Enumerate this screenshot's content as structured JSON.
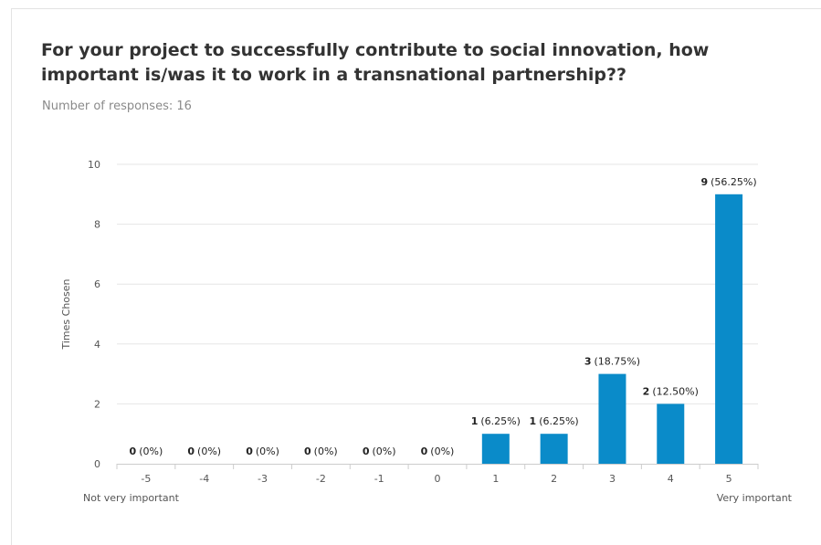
{
  "header": {
    "title": "For your project to successfully contribute to social innovation, how important is/was it to work in a transnational partnership??",
    "responses": "Number of responses: 16"
  },
  "colors": {
    "bar": "#0a8bc9",
    "grid": "#e6e6e6",
    "axis": "#cccccc"
  },
  "chart_data": {
    "type": "bar",
    "title": "For your project to successfully contribute to social innovation, how important is/was it to work in a transnational partnership??",
    "ylabel": "Times Chosen",
    "xlabel": "",
    "categories": [
      "-5",
      "-4",
      "-3",
      "-2",
      "-1",
      "0",
      "1",
      "2",
      "3",
      "4",
      "5"
    ],
    "values": [
      0,
      0,
      0,
      0,
      0,
      0,
      1,
      1,
      3,
      2,
      9
    ],
    "percents": [
      "(0%)",
      "(0%)",
      "(0%)",
      "(0%)",
      "(0%)",
      "(0%)",
      "(6.25%)",
      "(6.25%)",
      "(18.75%)",
      "(12.50%)",
      "(56.25%)"
    ],
    "ylim": [
      0,
      10
    ],
    "yticks": [
      0,
      2,
      4,
      6,
      8,
      10
    ],
    "grid": true,
    "legend": "none",
    "scale_labels": {
      "low": "Not very important",
      "high": "Very important"
    }
  }
}
